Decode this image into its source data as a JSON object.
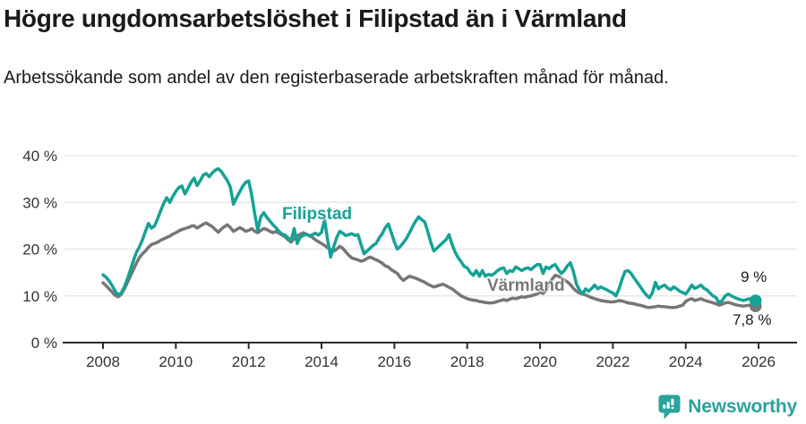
{
  "title": "Högre ungdomsarbetslöshet i Filipstad än i Värmland",
  "subtitle": "Arbetssökande som andel av den registerbaserade arbetskraften månad för månad.",
  "branding": {
    "logo_text": "Newsworthy",
    "logo_icon": "newsworthy-bubble-chart-icon",
    "logo_color": "#2aa39b"
  },
  "colors": {
    "filipstad": "#16a296",
    "varmland": "#767676",
    "grid": "#e7e7e7",
    "axis": "#2b2b2b",
    "tick_text": "#333333",
    "background": "#ffffff"
  },
  "chart_data": {
    "type": "line",
    "title": "Högre ungdomsarbetslöshet i Filipstad än i Värmland",
    "subtitle": "Arbetssökande som andel av den registerbaserade arbetskraften månad för månad.",
    "xlabel": "",
    "ylabel": "",
    "ylim": [
      0,
      42
    ],
    "grid": true,
    "legend_position": "inline-labels",
    "x_start_year": 2008,
    "points_per_year": 12,
    "x_ticks": [
      {
        "label": "2008",
        "year": 2008
      },
      {
        "label": "2010",
        "year": 2010
      },
      {
        "label": "2012",
        "year": 2012
      },
      {
        "label": "2014",
        "year": 2014
      },
      {
        "label": "2016",
        "year": 2016
      },
      {
        "label": "2018",
        "year": 2018
      },
      {
        "label": "2020",
        "year": 2020
      },
      {
        "label": "2022",
        "year": 2022
      },
      {
        "label": "2024",
        "year": 2024
      },
      {
        "label": "2026",
        "year": 2026
      }
    ],
    "y_ticks": [
      {
        "label": "0 %",
        "value": 0
      },
      {
        "label": "10 %",
        "value": 10
      },
      {
        "label": "20 %",
        "value": 20
      },
      {
        "label": "30 %",
        "value": 30
      },
      {
        "label": "40 %",
        "value": 40
      }
    ],
    "series": [
      {
        "name": "Filipstad",
        "slug": "filipstad",
        "color": "#16a296",
        "end_label": "9 %",
        "end_value": 9.0,
        "values": [
          14.5,
          14.0,
          13.2,
          12.2,
          11.0,
          10.2,
          10.6,
          11.8,
          13.5,
          15.5,
          17.5,
          19.3,
          20.5,
          22.0,
          23.8,
          25.5,
          24.5,
          25.0,
          26.5,
          28.2,
          29.8,
          31.0,
          30.0,
          31.3,
          32.3,
          33.2,
          33.5,
          31.8,
          33.0,
          34.3,
          35.2,
          33.6,
          34.6,
          35.8,
          36.2,
          35.5,
          36.3,
          36.9,
          37.2,
          36.6,
          35.6,
          34.6,
          33.2,
          29.6,
          31.0,
          32.2,
          33.4,
          34.3,
          34.6,
          31.5,
          27.5,
          24.0,
          26.9,
          27.8,
          26.8,
          26.0,
          25.2,
          24.6,
          23.8,
          23.2,
          23.0,
          22.4,
          21.9,
          24.4,
          21.2,
          22.6,
          22.9,
          23.2,
          22.8,
          23.1,
          23.4,
          23.0,
          23.6,
          26.3,
          22.0,
          18.3,
          20.5,
          22.5,
          23.8,
          23.4,
          22.9,
          23.1,
          23.3,
          22.9,
          23.1,
          21.0,
          19.0,
          19.6,
          20.2,
          20.8,
          21.2,
          22.4,
          23.3,
          24.6,
          25.4,
          23.5,
          21.5,
          20.0,
          20.6,
          21.4,
          22.3,
          23.5,
          24.8,
          26.0,
          26.9,
          26.3,
          25.8,
          23.8,
          21.5,
          19.6,
          20.2,
          20.8,
          21.4,
          22.0,
          23.1,
          21.0,
          19.4,
          18.2,
          17.3,
          16.3,
          16.0,
          15.0,
          14.4,
          15.4,
          14.2,
          15.4,
          14.2,
          14.6,
          14.4,
          14.8,
          15.4,
          15.8,
          16.0,
          14.8,
          15.4,
          15.2,
          16.2,
          15.8,
          15.4,
          15.8,
          16.0,
          15.6,
          16.2,
          16.7,
          16.7,
          14.8,
          16.2,
          15.8,
          16.4,
          16.7,
          15.6,
          14.8,
          15.4,
          16.4,
          17.1,
          15.2,
          12.5,
          11.3,
          10.4,
          11.5,
          11.0,
          11.6,
          12.3,
          11.5,
          11.9,
          11.6,
          11.3,
          10.9,
          10.6,
          10.0,
          11.5,
          13.5,
          15.2,
          15.4,
          14.8,
          13.8,
          12.9,
          12.0,
          11.0,
          10.2,
          9.6,
          10.6,
          12.9,
          11.5,
          12.0,
          12.3,
          11.7,
          11.3,
          11.9,
          11.5,
          11.0,
          10.7,
          10.4,
          11.3,
          12.3,
          11.6,
          11.9,
          12.3,
          11.6,
          11.3,
          10.6,
          10.0,
          9.6,
          8.5,
          9.0,
          10.0,
          10.4,
          10.0,
          9.7,
          9.4,
          9.2,
          9.0,
          9.2,
          9.4,
          9.1,
          9.0
        ]
      },
      {
        "name": "Värmland",
        "slug": "varmland",
        "color": "#767676",
        "end_label": "7,8 %",
        "end_value": 7.8,
        "values": [
          12.8,
          12.2,
          11.5,
          10.8,
          10.1,
          9.8,
          10.3,
          11.4,
          12.8,
          14.2,
          15.6,
          17.0,
          18.2,
          19.0,
          19.6,
          20.4,
          21.0,
          21.2,
          21.5,
          21.9,
          22.2,
          22.5,
          22.8,
          23.2,
          23.5,
          23.9,
          24.2,
          24.4,
          24.6,
          24.9,
          25.0,
          24.5,
          24.9,
          25.3,
          25.6,
          25.2,
          24.8,
          24.2,
          23.6,
          24.3,
          24.8,
          25.2,
          24.6,
          23.8,
          24.2,
          24.6,
          24.3,
          23.8,
          24.0,
          24.4,
          23.8,
          23.5,
          24.0,
          24.4,
          24.2,
          23.8,
          23.5,
          23.8,
          23.4,
          23.0,
          22.6,
          22.0,
          21.5,
          22.3,
          22.8,
          23.2,
          23.5,
          23.2,
          22.9,
          22.5,
          22.0,
          21.6,
          21.2,
          20.8,
          20.3,
          19.9,
          19.6,
          20.0,
          20.6,
          20.2,
          19.4,
          18.7,
          18.1,
          17.9,
          17.7,
          17.4,
          17.6,
          18.0,
          18.3,
          18.0,
          17.7,
          17.4,
          17.0,
          16.4,
          16.2,
          15.6,
          15.2,
          14.8,
          13.9,
          13.3,
          13.8,
          14.2,
          14.0,
          13.8,
          13.5,
          13.2,
          12.9,
          12.5,
          12.2,
          11.9,
          12.1,
          12.3,
          12.5,
          12.2,
          11.8,
          11.5,
          11.0,
          10.5,
          10.0,
          9.7,
          9.4,
          9.2,
          9.1,
          9.0,
          8.8,
          8.7,
          8.6,
          8.5,
          8.5,
          8.6,
          8.8,
          9.0,
          9.2,
          9.0,
          9.3,
          9.5,
          9.4,
          9.6,
          9.8,
          9.7,
          9.9,
          10.0,
          10.2,
          10.4,
          10.8,
          10.5,
          11.2,
          12.6,
          13.6,
          14.4,
          14.2,
          13.8,
          13.4,
          13.0,
          12.4,
          11.6,
          11.0,
          10.6,
          10.4,
          10.2,
          9.9,
          9.6,
          9.4,
          9.2,
          9.0,
          8.9,
          8.8,
          8.7,
          8.7,
          8.8,
          9.0,
          8.9,
          8.7,
          8.5,
          8.4,
          8.3,
          8.1,
          8.0,
          7.8,
          7.6,
          7.5,
          7.6,
          7.7,
          7.8,
          7.7,
          7.7,
          7.6,
          7.5,
          7.5,
          7.6,
          7.8,
          8.0,
          8.8,
          9.2,
          9.4,
          9.0,
          9.2,
          9.4,
          9.1,
          8.9,
          8.7,
          8.5,
          8.3,
          8.0,
          8.2,
          8.5,
          8.6,
          8.4,
          8.2,
          8.0,
          7.9,
          7.8,
          7.9,
          8.0,
          7.9,
          7.8
        ]
      }
    ]
  }
}
